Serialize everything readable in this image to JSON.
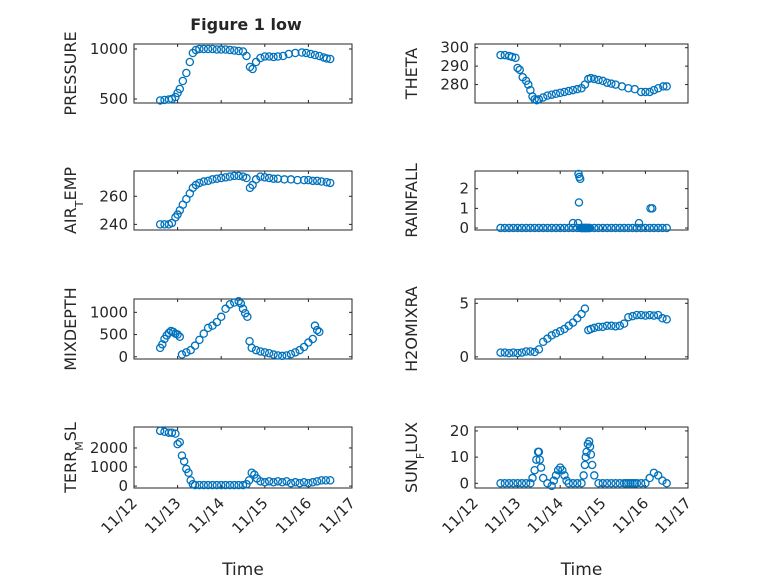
{
  "figure": {
    "title": "Figure 1 low",
    "marker_color": "#0072BD",
    "axis_color": "#262626",
    "grid_color": "#d0d0d0"
  },
  "chart_data": [
    {
      "id": "pressure",
      "type": "scatter",
      "ylabel": "PRESSURE",
      "xlabel": "",
      "grid": true,
      "xlim": [
        0,
        5
      ],
      "ylim": [
        460,
        1050
      ],
      "yticks": [
        500,
        1000
      ],
      "ytick_labels": [
        "500",
        "1000"
      ],
      "xticks": [
        0,
        1,
        2,
        3,
        4,
        5
      ],
      "xtick_labels": [
        "",
        "",
        "",
        "",
        "",
        ""
      ],
      "x": [
        0.6,
        0.7,
        0.8,
        0.87,
        0.95,
        1.0,
        1.05,
        1.12,
        1.2,
        1.28,
        1.35,
        1.42,
        1.5,
        1.6,
        1.7,
        1.8,
        1.9,
        2.0,
        2.1,
        2.2,
        2.3,
        2.4,
        2.5,
        2.58,
        2.66,
        2.72,
        2.8,
        2.9,
        3.0,
        3.1,
        3.2,
        3.3,
        3.42,
        3.55,
        3.7,
        3.85,
        3.95,
        4.05,
        4.15,
        4.25,
        4.35,
        4.42,
        4.5
      ],
      "y": [
        485,
        490,
        495,
        500,
        520,
        560,
        600,
        680,
        760,
        870,
        960,
        990,
        1000,
        1000,
        1000,
        1000,
        995,
        995,
        995,
        990,
        985,
        980,
        975,
        930,
        820,
        800,
        870,
        910,
        925,
        925,
        920,
        925,
        930,
        950,
        960,
        965,
        960,
        950,
        940,
        930,
        915,
        905,
        900
      ]
    },
    {
      "id": "theta",
      "type": "scatter",
      "ylabel": "THETA",
      "xlabel": "",
      "grid": true,
      "xlim": [
        0,
        5
      ],
      "ylim": [
        270,
        302
      ],
      "yticks": [
        280,
        290,
        300
      ],
      "ytick_labels": [
        "280",
        "290",
        "300"
      ],
      "xticks": [
        0,
        1,
        2,
        3,
        4,
        5
      ],
      "xtick_labels": [
        "",
        "",
        "",
        "",
        "",
        ""
      ],
      "x": [
        0.6,
        0.7,
        0.8,
        0.87,
        0.95,
        1.0,
        1.05,
        1.12,
        1.2,
        1.25,
        1.3,
        1.35,
        1.4,
        1.45,
        1.5,
        1.6,
        1.7,
        1.8,
        1.9,
        2.0,
        2.1,
        2.2,
        2.3,
        2.4,
        2.5,
        2.58,
        2.66,
        2.72,
        2.8,
        2.9,
        3.0,
        3.1,
        3.2,
        3.3,
        3.45,
        3.6,
        3.75,
        3.9,
        4.0,
        4.1,
        4.2,
        4.3,
        4.42,
        4.5
      ],
      "y": [
        296,
        296,
        295.5,
        295,
        294.5,
        289,
        288,
        284,
        282,
        280,
        277,
        273.5,
        272,
        271.5,
        272,
        273,
        274,
        274.5,
        275,
        275.5,
        276,
        276.5,
        277,
        277.5,
        278,
        280,
        283,
        283.5,
        283,
        282.5,
        282,
        281,
        280.5,
        280,
        279,
        278,
        277.5,
        276,
        276,
        276,
        277,
        278,
        279,
        279
      ]
    },
    {
      "id": "airtemp",
      "type": "scatter",
      "ylabel": "AIR_TEMP",
      "xlabel": "",
      "grid": true,
      "xlim": [
        0,
        5
      ],
      "ylim": [
        236,
        278
      ],
      "yticks": [
        240,
        260
      ],
      "ytick_labels": [
        "240",
        "260"
      ],
      "xticks": [
        0,
        1,
        2,
        3,
        4,
        5
      ],
      "xtick_labels": [
        "",
        "",
        "",
        "",
        "",
        ""
      ],
      "x": [
        0.6,
        0.7,
        0.8,
        0.87,
        0.95,
        1.0,
        1.05,
        1.12,
        1.2,
        1.28,
        1.35,
        1.42,
        1.5,
        1.6,
        1.7,
        1.8,
        1.9,
        2.0,
        2.1,
        2.2,
        2.3,
        2.4,
        2.5,
        2.58,
        2.66,
        2.72,
        2.8,
        2.9,
        3.0,
        3.1,
        3.2,
        3.3,
        3.45,
        3.6,
        3.75,
        3.9,
        4.0,
        4.1,
        4.2,
        4.3,
        4.42,
        4.5
      ],
      "y": [
        240,
        240,
        240,
        241,
        245,
        247,
        250,
        254,
        258,
        262,
        266,
        268,
        269.5,
        270.5,
        271,
        272,
        272.5,
        273,
        273.5,
        274,
        274.5,
        274.5,
        274,
        273,
        266,
        268,
        272,
        274,
        273.5,
        273,
        272.5,
        272.5,
        272,
        272,
        271.5,
        271.5,
        271.5,
        271,
        271,
        270.5,
        270,
        269.5
      ]
    },
    {
      "id": "rainfall",
      "type": "scatter",
      "ylabel": "RAINFALL",
      "xlabel": "",
      "grid": true,
      "xlim": [
        0,
        5
      ],
      "ylim": [
        -0.1,
        2.9
      ],
      "yticks": [
        0,
        1,
        2
      ],
      "ytick_labels": [
        "0",
        "1",
        "2"
      ],
      "xticks": [
        0,
        1,
        2,
        3,
        4,
        5
      ],
      "xtick_labels": [
        "",
        "",
        "",
        "",
        "",
        ""
      ],
      "x": [
        0.6,
        0.7,
        0.8,
        0.9,
        1.0,
        1.1,
        1.2,
        1.3,
        1.4,
        1.5,
        1.6,
        1.7,
        1.8,
        1.9,
        2.0,
        2.1,
        2.2,
        2.3,
        2.4,
        2.5,
        2.6,
        2.7,
        2.8,
        2.9,
        3.0,
        3.1,
        3.2,
        3.3,
        3.4,
        3.5,
        3.6,
        3.7,
        3.8,
        3.9,
        4.0,
        4.1,
        4.2,
        4.3,
        4.4,
        4.5,
        2.43,
        2.45,
        2.47,
        2.44,
        2.42,
        2.48,
        2.5,
        2.52,
        2.54,
        2.56,
        2.58,
        2.6,
        2.62,
        2.64,
        2.66,
        2.68,
        2.3,
        3.85,
        4.12,
        4.16
      ],
      "y": [
        0,
        0,
        0,
        0,
        0,
        0,
        0,
        0,
        0,
        0,
        0,
        0,
        0,
        0,
        0,
        0,
        0,
        0,
        0,
        0,
        0,
        0,
        0,
        0,
        0,
        0,
        0,
        0,
        0,
        0,
        0,
        0,
        0,
        0,
        0,
        0,
        0,
        0,
        0,
        0,
        2.75,
        2.6,
        2.5,
        1.3,
        0.25,
        0,
        0,
        0,
        0,
        0,
        0,
        0,
        0,
        0,
        0,
        0,
        0.25,
        0.25,
        1.0,
        1.0
      ]
    },
    {
      "id": "mixdepth",
      "type": "scatter",
      "ylabel": "MIXDEPTH",
      "xlabel": "",
      "grid": true,
      "xlim": [
        0,
        5
      ],
      "ylim": [
        -50,
        1300
      ],
      "yticks": [
        0,
        500,
        1000
      ],
      "ytick_labels": [
        "0",
        "500",
        "1000"
      ],
      "xticks": [
        0,
        1,
        2,
        3,
        4,
        5
      ],
      "xtick_labels": [
        "",
        "",
        "",
        "",
        "",
        ""
      ],
      "x": [
        0.6,
        0.65,
        0.7,
        0.75,
        0.8,
        0.85,
        0.9,
        0.95,
        1.0,
        1.05,
        1.1,
        1.2,
        1.3,
        1.4,
        1.5,
        1.6,
        1.7,
        1.8,
        1.9,
        2.0,
        2.1,
        2.2,
        2.3,
        2.4,
        2.45,
        2.5,
        2.55,
        2.6,
        2.65,
        2.7,
        2.8,
        2.9,
        3.0,
        3.1,
        3.2,
        3.3,
        3.4,
        3.5,
        3.6,
        3.7,
        3.8,
        3.9,
        4.0,
        4.1,
        4.15,
        4.2,
        4.25
      ],
      "y": [
        200,
        280,
        400,
        480,
        540,
        580,
        560,
        520,
        500,
        450,
        50,
        100,
        150,
        250,
        380,
        520,
        650,
        700,
        780,
        900,
        1080,
        1180,
        1220,
        1250,
        1200,
        1080,
        980,
        900,
        350,
        200,
        150,
        120,
        100,
        80,
        50,
        30,
        20,
        30,
        60,
        100,
        150,
        220,
        320,
        400,
        700,
        600,
        560
      ]
    },
    {
      "id": "h2omixra",
      "type": "scatter",
      "ylabel": "H2OMIXRA",
      "xlabel": "",
      "grid": true,
      "xlim": [
        0,
        5
      ],
      "ylim": [
        -0.2,
        5.4
      ],
      "yticks": [
        0,
        5
      ],
      "ytick_labels": [
        "0",
        "5"
      ],
      "xticks": [
        0,
        1,
        2,
        3,
        4,
        5
      ],
      "xtick_labels": [
        "",
        "",
        "",
        "",
        "",
        ""
      ],
      "x": [
        0.6,
        0.7,
        0.8,
        0.9,
        1.0,
        1.1,
        1.2,
        1.3,
        1.4,
        1.5,
        1.6,
        1.7,
        1.8,
        1.9,
        2.0,
        2.1,
        2.2,
        2.3,
        2.4,
        2.5,
        2.58,
        2.66,
        2.72,
        2.8,
        2.9,
        3.0,
        3.1,
        3.2,
        3.3,
        3.4,
        3.5,
        3.6,
        3.7,
        3.8,
        3.9,
        4.0,
        4.1,
        4.2,
        4.3,
        4.4,
        4.5
      ],
      "y": [
        0.4,
        0.4,
        0.35,
        0.4,
        0.35,
        0.4,
        0.5,
        0.5,
        0.45,
        0.7,
        1.4,
        1.7,
        2.0,
        2.2,
        2.4,
        2.6,
        2.9,
        3.2,
        3.6,
        4.0,
        4.5,
        2.5,
        2.6,
        2.7,
        2.8,
        2.8,
        2.9,
        2.9,
        2.85,
        2.9,
        3.1,
        3.7,
        3.8,
        3.9,
        3.9,
        3.85,
        3.9,
        3.85,
        3.9,
        3.6,
        3.5
      ]
    },
    {
      "id": "terrmsl",
      "type": "scatter",
      "ylabel": "TERR_MSL",
      "xlabel": "Time",
      "grid": true,
      "xlim": [
        0,
        5
      ],
      "ylim": [
        -100,
        3100
      ],
      "yticks": [
        0,
        1000,
        2000
      ],
      "ytick_labels": [
        "0",
        "1000",
        "2000"
      ],
      "xticks": [
        0,
        1,
        2,
        3,
        4,
        5
      ],
      "xtick_labels": [
        "11/12",
        "11/13",
        "11/14",
        "11/15",
        "11/16",
        "11/17"
      ],
      "x": [
        0.6,
        0.7,
        0.8,
        0.87,
        0.95,
        1.0,
        1.05,
        1.1,
        1.15,
        1.2,
        1.25,
        1.3,
        1.35,
        1.4,
        1.5,
        1.6,
        1.7,
        1.8,
        1.9,
        2.0,
        2.1,
        2.2,
        2.3,
        2.4,
        2.5,
        2.58,
        2.64,
        2.7,
        2.76,
        2.82,
        2.9,
        3.0,
        3.1,
        3.2,
        3.3,
        3.4,
        3.5,
        3.6,
        3.7,
        3.8,
        3.9,
        4.0,
        4.1,
        4.2,
        4.3,
        4.4,
        4.5
      ],
      "y": [
        2900,
        2850,
        2800,
        2800,
        2750,
        2200,
        2300,
        1600,
        1300,
        900,
        700,
        300,
        100,
        50,
        50,
        50,
        50,
        50,
        50,
        50,
        50,
        50,
        50,
        50,
        50,
        100,
        300,
        700,
        600,
        400,
        250,
        200,
        250,
        200,
        250,
        200,
        250,
        150,
        200,
        150,
        200,
        150,
        200,
        250,
        300,
        300,
        300
      ]
    },
    {
      "id": "sunflux",
      "type": "scatter",
      "ylabel": "SUN_FLUX",
      "xlabel": "Time",
      "grid": true,
      "xlim": [
        0,
        5
      ],
      "ylim": [
        -1.8,
        21.5
      ],
      "yticks": [
        0,
        10,
        20
      ],
      "ytick_labels": [
        "0",
        "10",
        "20"
      ],
      "xticks": [
        0,
        1,
        2,
        3,
        4,
        5
      ],
      "xtick_labels": [
        "11/12",
        "11/13",
        "11/14",
        "11/15",
        "11/16",
        "11/17"
      ],
      "x": [
        0.6,
        0.7,
        0.8,
        0.9,
        1.0,
        1.1,
        1.2,
        1.3,
        1.35,
        1.4,
        1.44,
        1.48,
        1.5,
        1.52,
        1.55,
        1.6,
        1.7,
        1.8,
        1.85,
        1.9,
        1.95,
        2.0,
        2.05,
        2.1,
        2.15,
        2.2,
        2.3,
        2.4,
        2.5,
        2.55,
        2.58,
        2.6,
        2.62,
        2.65,
        2.68,
        2.7,
        2.72,
        2.75,
        2.8,
        2.9,
        3.0,
        3.1,
        3.2,
        3.3,
        3.4,
        3.5,
        3.55,
        3.6,
        3.65,
        3.7,
        3.75,
        3.8,
        3.9,
        4.0,
        4.1,
        4.2,
        4.3,
        4.4,
        4.5
      ],
      "y": [
        0,
        0,
        0,
        0,
        0,
        0,
        0,
        0,
        2,
        5,
        9,
        12,
        12,
        9,
        6,
        2,
        0,
        -1,
        1,
        3,
        5,
        6,
        5,
        3,
        1,
        0,
        0,
        0,
        0,
        3,
        7,
        10,
        12,
        15,
        16,
        14,
        11,
        7,
        3,
        0,
        0,
        0,
        0,
        0,
        0,
        0,
        0,
        0,
        0,
        0,
        0,
        0,
        0,
        0,
        2,
        4,
        3,
        1,
        0
      ]
    }
  ]
}
